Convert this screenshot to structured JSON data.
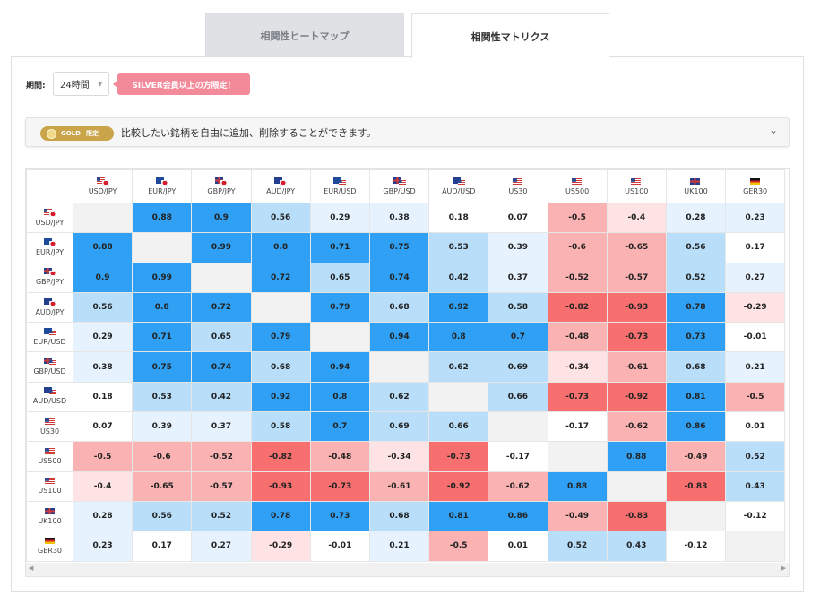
{
  "tabs": [
    {
      "label": "相関性ヒートマップ",
      "active": false
    },
    {
      "label": "相関性マトリクス",
      "active": true
    }
  ],
  "period": {
    "label": "期間:",
    "value": "24時間"
  },
  "silver_notice": "SILVER会員以上の方限定！",
  "gold_bar": {
    "badge": "GOLD",
    "badge_limited": "限定",
    "text": "比較したい銘柄を自由に追加、削除することができます。"
  },
  "colors": {
    "strong_pos": "#2fa0f3",
    "mid_pos": "#b8defa",
    "weak_pos": "#e6f2fd",
    "neutral": "#ffffff",
    "weak_neg": "#fde3e3",
    "mid_neg": "#fbb2b2",
    "strong_neg": "#f7706f",
    "diagonal": "#f2f2f2"
  },
  "symbols": [
    {
      "name": "USD/JPY",
      "flags": [
        "us",
        "jp"
      ]
    },
    {
      "name": "EUR/JPY",
      "flags": [
        "eu",
        "jp"
      ]
    },
    {
      "name": "GBP/JPY",
      "flags": [
        "gb",
        "jp"
      ]
    },
    {
      "name": "AUD/JPY",
      "flags": [
        "au",
        "jp"
      ]
    },
    {
      "name": "EUR/USD",
      "flags": [
        "eu",
        "us"
      ]
    },
    {
      "name": "GBP/USD",
      "flags": [
        "gb",
        "us"
      ]
    },
    {
      "name": "AUD/USD",
      "flags": [
        "au",
        "us"
      ]
    },
    {
      "name": "US30",
      "flags": [
        "us"
      ]
    },
    {
      "name": "US500",
      "flags": [
        "us"
      ]
    },
    {
      "name": "US100",
      "flags": [
        "us"
      ]
    },
    {
      "name": "UK100",
      "flags": [
        "gb"
      ]
    },
    {
      "name": "GER30",
      "flags": [
        "de"
      ]
    }
  ],
  "matrix": [
    [
      null,
      0.88,
      0.9,
      0.56,
      0.29,
      0.38,
      0.18,
      0.07,
      -0.5,
      -0.4,
      0.28,
      0.23
    ],
    [
      0.88,
      null,
      0.99,
      0.8,
      0.71,
      0.75,
      0.53,
      0.39,
      -0.6,
      -0.65,
      0.56,
      0.17
    ],
    [
      0.9,
      0.99,
      null,
      0.72,
      0.65,
      0.74,
      0.42,
      0.37,
      -0.52,
      -0.57,
      0.52,
      0.27
    ],
    [
      0.56,
      0.8,
      0.72,
      null,
      0.79,
      0.68,
      0.92,
      0.58,
      -0.82,
      -0.93,
      0.78,
      -0.29
    ],
    [
      0.29,
      0.71,
      0.65,
      0.79,
      null,
      0.94,
      0.8,
      0.7,
      -0.48,
      -0.73,
      0.73,
      -0.01
    ],
    [
      0.38,
      0.75,
      0.74,
      0.68,
      0.94,
      null,
      0.62,
      0.69,
      -0.34,
      -0.61,
      0.68,
      0.21
    ],
    [
      0.18,
      0.53,
      0.42,
      0.92,
      0.8,
      0.62,
      null,
      0.66,
      -0.73,
      -0.92,
      0.81,
      -0.5
    ],
    [
      0.07,
      0.39,
      0.37,
      0.58,
      0.7,
      0.69,
      0.66,
      null,
      -0.17,
      -0.62,
      0.86,
      0.01
    ],
    [
      -0.5,
      -0.6,
      -0.52,
      -0.82,
      -0.48,
      -0.34,
      -0.73,
      -0.17,
      null,
      0.88,
      -0.49,
      0.52
    ],
    [
      -0.4,
      -0.65,
      -0.57,
      -0.93,
      -0.73,
      -0.61,
      -0.92,
      -0.62,
      0.88,
      null,
      -0.83,
      0.43
    ],
    [
      0.28,
      0.56,
      0.52,
      0.78,
      0.73,
      0.68,
      0.81,
      0.86,
      -0.49,
      -0.83,
      null,
      -0.12
    ],
    [
      0.23,
      0.17,
      0.27,
      -0.29,
      -0.01,
      0.21,
      -0.5,
      0.01,
      0.52,
      0.43,
      -0.12,
      null
    ]
  ]
}
